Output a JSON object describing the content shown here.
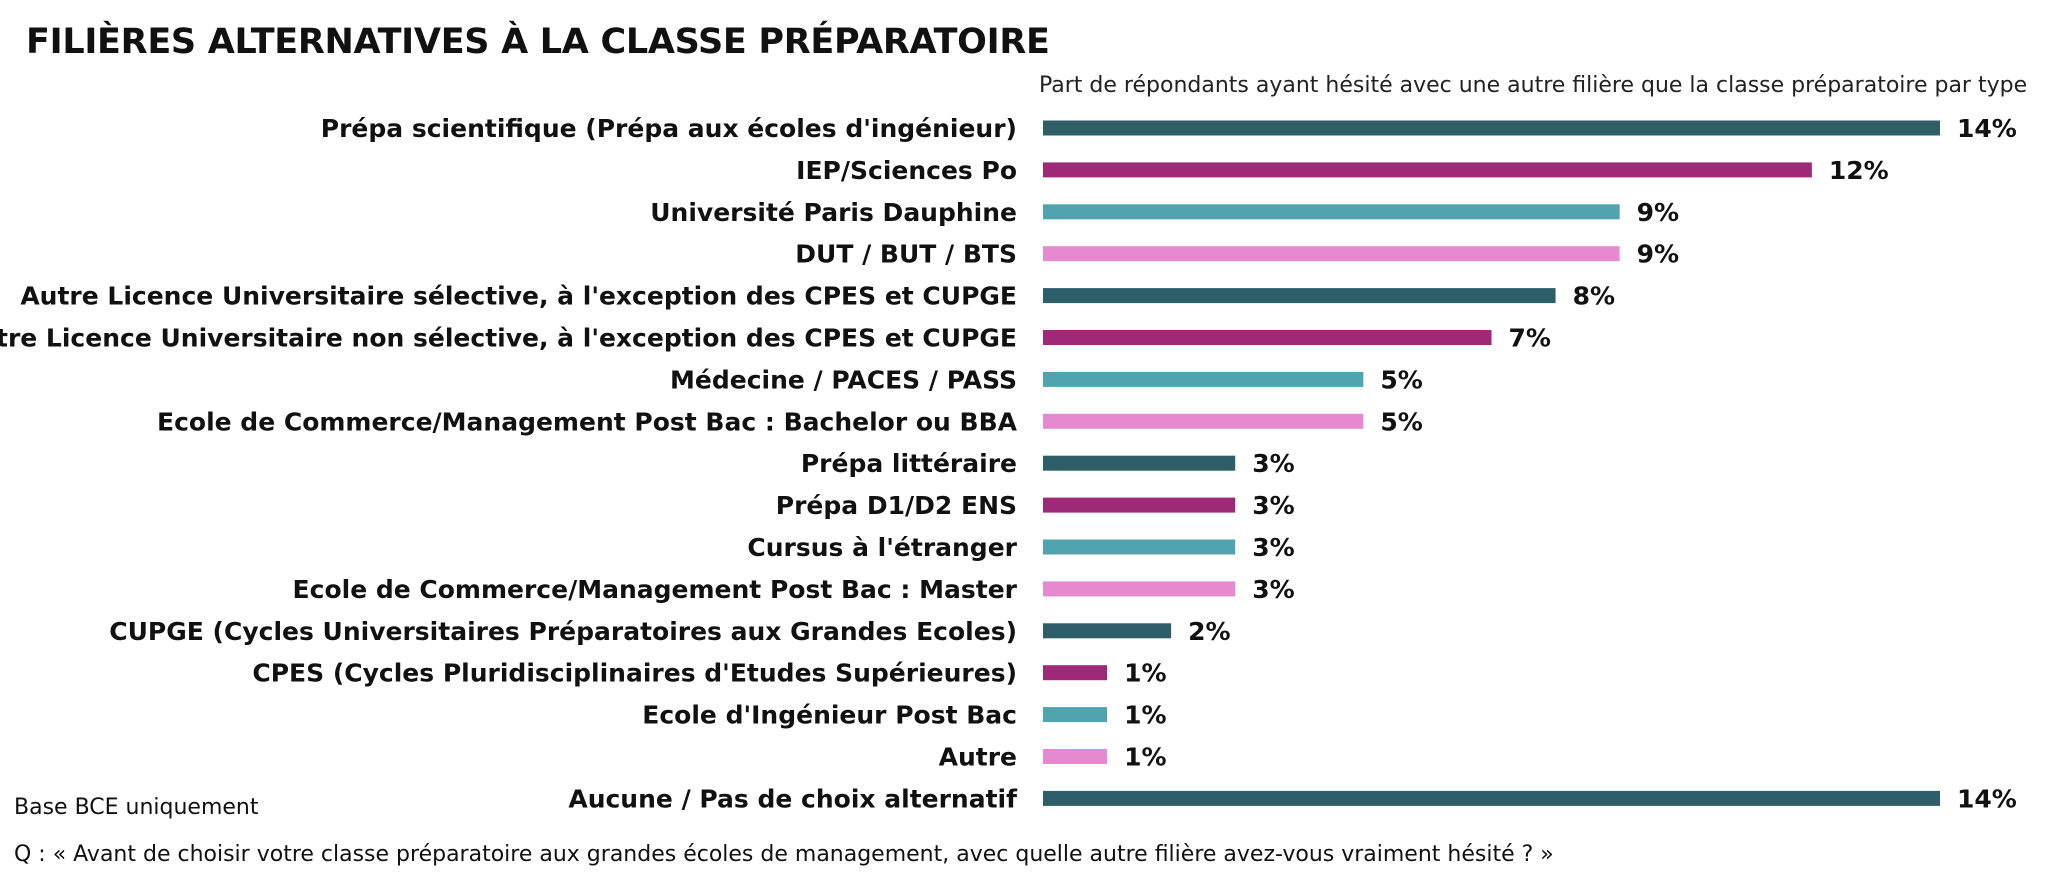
{
  "chart_data": {
    "type": "bar",
    "orientation": "horizontal",
    "title": "FILIÈRES ALTERNATIVES À LA CLASSE PRÉPARATOIRE",
    "subtitle": "Part de répondants ayant hésité avec une autre filière que la classe préparatoire par type",
    "categories": [
      "Prépa scientifique (Prépa aux écoles d'ingénieur)",
      "IEP/Sciences Po",
      "Université Paris Dauphine",
      "DUT / BUT / BTS",
      "Autre Licence Universitaire sélective, à l'exception des CPES et CUPGE",
      "Autre Licence Universitaire non sélective, à l'exception des CPES et CUPGE",
      "Médecine / PACES / PASS",
      "Ecole de Commerce/Management Post Bac : Bachelor ou BBA",
      "Prépa littéraire",
      "Prépa D1/D2 ENS",
      "Cursus à l'étranger",
      "Ecole de Commerce/Management Post Bac : Master",
      "CUPGE (Cycles Universitaires Préparatoires aux Grandes Ecoles)",
      "CPES (Cycles Pluridisciplinaires d'Etudes Supérieures)",
      "Ecole d'Ingénieur Post Bac",
      "Autre",
      "Aucune / Pas de choix alternatif"
    ],
    "values": [
      14,
      12,
      9,
      9,
      8,
      7,
      5,
      5,
      3,
      3,
      3,
      3,
      2,
      1,
      1,
      1,
      14
    ],
    "value_labels": [
      "14%",
      "12%",
      "9%",
      "9%",
      "8%",
      "7%",
      "5%",
      "5%",
      "3%",
      "3%",
      "3%",
      "3%",
      "2%",
      "1%",
      "1%",
      "1%",
      "14%"
    ],
    "unit": "%",
    "xlim": [
      0,
      14
    ],
    "grid": false,
    "legend": "none",
    "colors": [
      "#2e5f69",
      "#9e2a77",
      "#4fa4ae",
      "#e68ad0",
      "#2e5f69",
      "#9e2a77",
      "#4fa4ae",
      "#e68ad0",
      "#2e5f69",
      "#9e2a77",
      "#4fa4ae",
      "#e68ad0",
      "#2e5f69",
      "#9e2a77",
      "#4fa4ae",
      "#e68ad0",
      "#2e5f69"
    ]
  },
  "notes": {
    "base": "Base BCE uniquement",
    "question": "Q : « Avant de choisir votre classe préparatoire aux grandes écoles de management, avec quelle autre filière avez-vous vraiment hésité ?  »"
  }
}
